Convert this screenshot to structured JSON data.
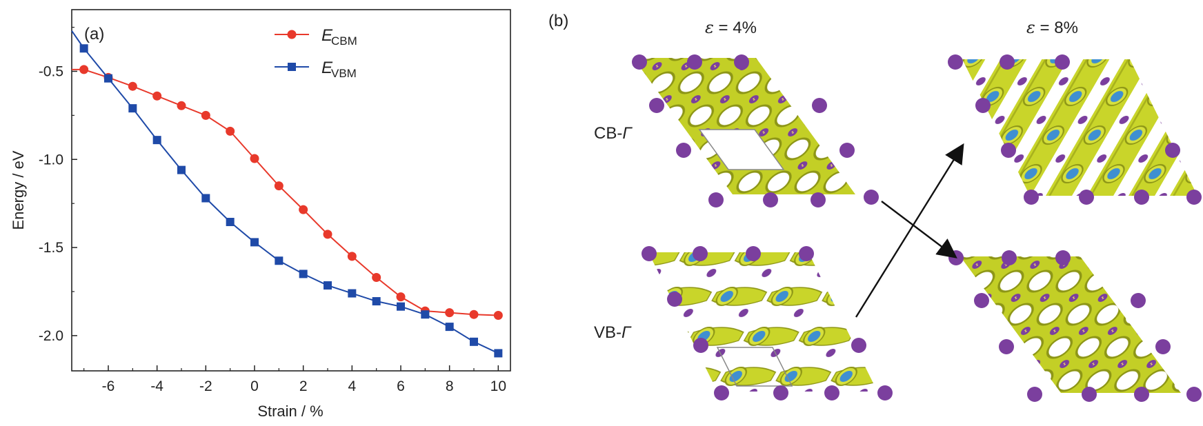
{
  "chart_data": {
    "type": "line",
    "panel_label": "(a)",
    "xlabel": "Strain / %",
    "ylabel": "Energy / eV",
    "xlim": [
      -7.5,
      10.5
    ],
    "ylim": [
      -2.2,
      -0.15
    ],
    "xticks": [
      -6,
      -4,
      -2,
      0,
      2,
      4,
      6,
      8,
      10
    ],
    "xtick_labels": [
      "-6",
      "-4",
      "-2",
      "0",
      "2",
      "4",
      "6",
      "8",
      "10"
    ],
    "yticks": [
      -0.5,
      -1.0,
      -1.5,
      -2.0
    ],
    "ytick_labels": [
      "-0.5",
      "-1.0",
      "-1.5",
      "-2.0"
    ],
    "grid": false,
    "legend_position": "top-center",
    "x": [
      -7,
      -6,
      -5,
      -4,
      -3,
      -2,
      -1,
      0,
      1,
      2,
      3,
      4,
      5,
      6,
      7,
      8,
      9,
      10
    ],
    "series": [
      {
        "name_main": "E",
        "name_sub": "CBM",
        "color": "#e8392b",
        "marker": "circle",
        "values": [
          -0.49,
          -0.535,
          -0.585,
          -0.64,
          -0.695,
          -0.75,
          -0.84,
          -0.995,
          -1.15,
          -1.285,
          -1.425,
          -1.55,
          -1.67,
          -1.78,
          -1.86,
          -1.87,
          -1.88,
          -1.885
        ]
      },
      {
        "name_main": "E",
        "name_sub": "VBM",
        "color": "#1f4aa8",
        "marker": "square",
        "values": [
          -0.37,
          -0.54,
          -0.71,
          -0.89,
          -1.06,
          -1.22,
          -1.355,
          -1.47,
          -1.575,
          -1.65,
          -1.715,
          -1.76,
          -1.805,
          -1.835,
          -1.88,
          -1.95,
          -2.035,
          -2.1
        ]
      }
    ],
    "line_start_extension": [
      -7.5,
      -0.27
    ]
  },
  "panel_b": {
    "panel_label": "(b)",
    "col_titles": [
      {
        "symbol": "ε",
        "value": " = 4%"
      },
      {
        "symbol": "ε",
        "value": " = 8%"
      }
    ],
    "row_labels": [
      {
        "prefix": "CB-",
        "symbol": "Γ"
      },
      {
        "prefix": "VB-",
        "symbol": "Γ"
      }
    ],
    "colors": {
      "isosurface": "#c9d52a",
      "isosurface_dark": "#8d9616",
      "atom_purple": "#7b3f9e",
      "atom_blue": "#3f8fd1",
      "arrow": "#111111",
      "cell_outline": "#888888"
    }
  }
}
